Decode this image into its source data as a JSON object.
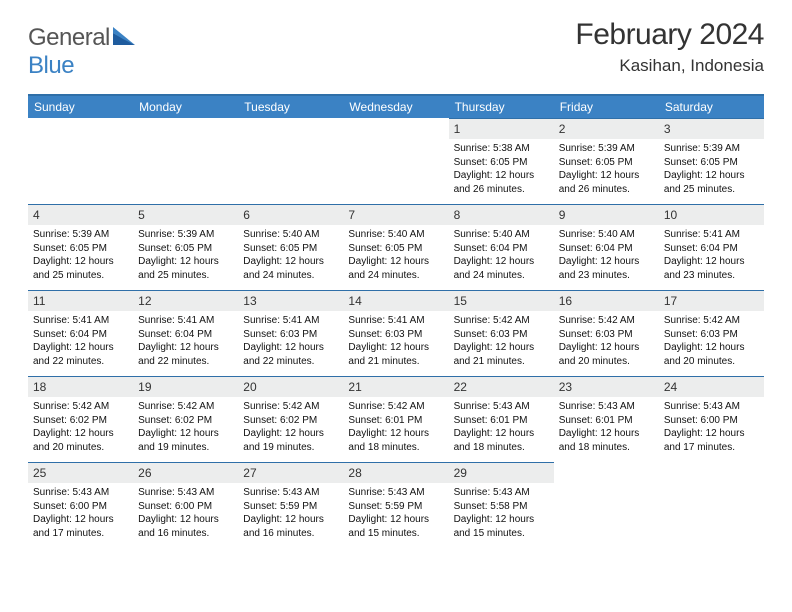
{
  "logo": {
    "brand1": "General",
    "brand2": "Blue"
  },
  "title": "February 2024",
  "location": "Kasihan, Indonesia",
  "colors": {
    "header_bg": "#3b82c4",
    "header_border": "#2f6fa8",
    "daynum_bg": "#eceded"
  },
  "weekdays": [
    "Sunday",
    "Monday",
    "Tuesday",
    "Wednesday",
    "Thursday",
    "Friday",
    "Saturday"
  ],
  "weeks": [
    [
      null,
      null,
      null,
      null,
      {
        "d": "1",
        "sr": "5:38 AM",
        "ss": "6:05 PM",
        "dl": "12 hours and 26 minutes."
      },
      {
        "d": "2",
        "sr": "5:39 AM",
        "ss": "6:05 PM",
        "dl": "12 hours and 26 minutes."
      },
      {
        "d": "3",
        "sr": "5:39 AM",
        "ss": "6:05 PM",
        "dl": "12 hours and 25 minutes."
      }
    ],
    [
      {
        "d": "4",
        "sr": "5:39 AM",
        "ss": "6:05 PM",
        "dl": "12 hours and 25 minutes."
      },
      {
        "d": "5",
        "sr": "5:39 AM",
        "ss": "6:05 PM",
        "dl": "12 hours and 25 minutes."
      },
      {
        "d": "6",
        "sr": "5:40 AM",
        "ss": "6:05 PM",
        "dl": "12 hours and 24 minutes."
      },
      {
        "d": "7",
        "sr": "5:40 AM",
        "ss": "6:05 PM",
        "dl": "12 hours and 24 minutes."
      },
      {
        "d": "8",
        "sr": "5:40 AM",
        "ss": "6:04 PM",
        "dl": "12 hours and 24 minutes."
      },
      {
        "d": "9",
        "sr": "5:40 AM",
        "ss": "6:04 PM",
        "dl": "12 hours and 23 minutes."
      },
      {
        "d": "10",
        "sr": "5:41 AM",
        "ss": "6:04 PM",
        "dl": "12 hours and 23 minutes."
      }
    ],
    [
      {
        "d": "11",
        "sr": "5:41 AM",
        "ss": "6:04 PM",
        "dl": "12 hours and 22 minutes."
      },
      {
        "d": "12",
        "sr": "5:41 AM",
        "ss": "6:04 PM",
        "dl": "12 hours and 22 minutes."
      },
      {
        "d": "13",
        "sr": "5:41 AM",
        "ss": "6:03 PM",
        "dl": "12 hours and 22 minutes."
      },
      {
        "d": "14",
        "sr": "5:41 AM",
        "ss": "6:03 PM",
        "dl": "12 hours and 21 minutes."
      },
      {
        "d": "15",
        "sr": "5:42 AM",
        "ss": "6:03 PM",
        "dl": "12 hours and 21 minutes."
      },
      {
        "d": "16",
        "sr": "5:42 AM",
        "ss": "6:03 PM",
        "dl": "12 hours and 20 minutes."
      },
      {
        "d": "17",
        "sr": "5:42 AM",
        "ss": "6:03 PM",
        "dl": "12 hours and 20 minutes."
      }
    ],
    [
      {
        "d": "18",
        "sr": "5:42 AM",
        "ss": "6:02 PM",
        "dl": "12 hours and 20 minutes."
      },
      {
        "d": "19",
        "sr": "5:42 AM",
        "ss": "6:02 PM",
        "dl": "12 hours and 19 minutes."
      },
      {
        "d": "20",
        "sr": "5:42 AM",
        "ss": "6:02 PM",
        "dl": "12 hours and 19 minutes."
      },
      {
        "d": "21",
        "sr": "5:42 AM",
        "ss": "6:01 PM",
        "dl": "12 hours and 18 minutes."
      },
      {
        "d": "22",
        "sr": "5:43 AM",
        "ss": "6:01 PM",
        "dl": "12 hours and 18 minutes."
      },
      {
        "d": "23",
        "sr": "5:43 AM",
        "ss": "6:01 PM",
        "dl": "12 hours and 18 minutes."
      },
      {
        "d": "24",
        "sr": "5:43 AM",
        "ss": "6:00 PM",
        "dl": "12 hours and 17 minutes."
      }
    ],
    [
      {
        "d": "25",
        "sr": "5:43 AM",
        "ss": "6:00 PM",
        "dl": "12 hours and 17 minutes."
      },
      {
        "d": "26",
        "sr": "5:43 AM",
        "ss": "6:00 PM",
        "dl": "12 hours and 16 minutes."
      },
      {
        "d": "27",
        "sr": "5:43 AM",
        "ss": "5:59 PM",
        "dl": "12 hours and 16 minutes."
      },
      {
        "d": "28",
        "sr": "5:43 AM",
        "ss": "5:59 PM",
        "dl": "12 hours and 15 minutes."
      },
      {
        "d": "29",
        "sr": "5:43 AM",
        "ss": "5:58 PM",
        "dl": "12 hours and 15 minutes."
      },
      null,
      null
    ]
  ],
  "labels": {
    "sunrise": "Sunrise:",
    "sunset": "Sunset:",
    "daylight": "Daylight:"
  }
}
